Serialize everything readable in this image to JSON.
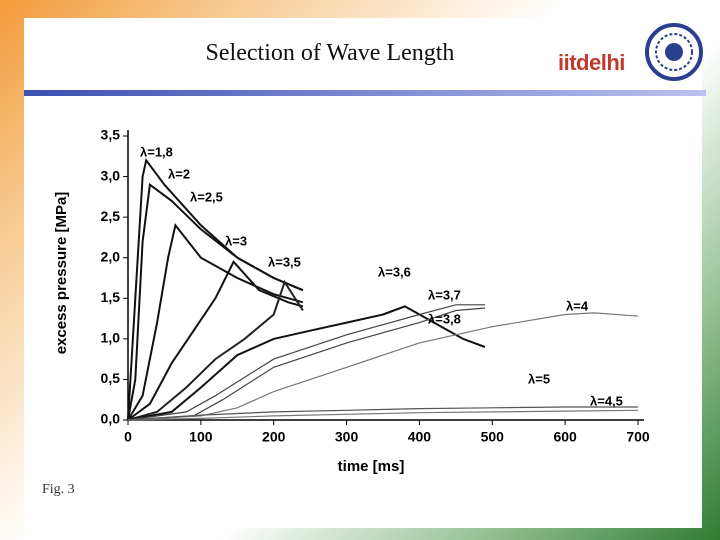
{
  "slide": {
    "title": "Selection of Wave Length",
    "logo_text": "iitdelhi",
    "caption": "Fig. 3"
  },
  "chart_data": {
    "type": "line",
    "x_label": "time [ms]",
    "y_label": "excess pressure [MPa]",
    "xlim": [
      0,
      700
    ],
    "xticks": [
      0,
      100,
      200,
      300,
      400,
      500,
      600,
      700
    ],
    "ylim": [
      0,
      3.5
    ],
    "yticks": [
      {
        "value": 0,
        "label": "0,0"
      },
      {
        "value": 0.5,
        "label": "0,5"
      },
      {
        "value": 1,
        "label": "1,0"
      },
      {
        "value": 1.5,
        "label": "1,5"
      },
      {
        "value": 2,
        "label": "2,0"
      },
      {
        "value": 2.5,
        "label": "2,5"
      },
      {
        "value": 3,
        "label": "3,0"
      },
      {
        "value": 3.5,
        "label": "3,5"
      }
    ],
    "series": [
      {
        "name": "λ=1,8",
        "color": "#111111",
        "x": [
          0,
          10,
          20,
          25,
          50,
          100,
          150,
          200,
          240
        ],
        "values": [
          0,
          1.5,
          3.0,
          3.2,
          2.9,
          2.4,
          2.0,
          1.75,
          1.6
        ]
      },
      {
        "name": "λ=2",
        "color": "#111111",
        "x": [
          0,
          10,
          20,
          30,
          60,
          100,
          150,
          200,
          240
        ],
        "values": [
          0,
          0.5,
          2.2,
          2.9,
          2.7,
          2.35,
          2.0,
          1.75,
          1.6
        ]
      },
      {
        "name": "λ=2,5",
        "color": "#111111",
        "x": [
          0,
          20,
          40,
          55,
          65,
          100,
          150,
          200,
          240
        ],
        "values": [
          0,
          0.3,
          1.2,
          2.0,
          2.4,
          2.0,
          1.75,
          1.55,
          1.45
        ]
      },
      {
        "name": "λ=3",
        "color": "#111111",
        "x": [
          0,
          30,
          60,
          90,
          120,
          145,
          180,
          220,
          240
        ],
        "values": [
          0,
          0.2,
          0.7,
          1.1,
          1.5,
          1.95,
          1.6,
          1.45,
          1.4
        ]
      },
      {
        "name": "λ=3,5",
        "color": "#222222",
        "x": [
          0,
          40,
          80,
          120,
          160,
          200,
          215,
          240
        ],
        "values": [
          0,
          0.1,
          0.4,
          0.75,
          1.0,
          1.3,
          1.7,
          1.35
        ]
      },
      {
        "name": "λ=3,6",
        "color": "#111111",
        "x": [
          0,
          60,
          100,
          150,
          200,
          250,
          300,
          350,
          380,
          420,
          460,
          490
        ],
        "values": [
          0,
          0.1,
          0.4,
          0.8,
          1.0,
          1.1,
          1.2,
          1.3,
          1.4,
          1.2,
          1.0,
          0.9
        ]
      },
      {
        "name": "λ=3,7",
        "color": "#444444",
        "x": [
          0,
          80,
          120,
          200,
          300,
          400,
          450,
          490
        ],
        "values": [
          0,
          0.1,
          0.3,
          0.75,
          1.05,
          1.3,
          1.42,
          1.42
        ]
      },
      {
        "name": "λ=3,8",
        "color": "#444444",
        "x": [
          0,
          90,
          130,
          200,
          300,
          400,
          450,
          490
        ],
        "values": [
          0,
          0.05,
          0.25,
          0.65,
          0.95,
          1.2,
          1.35,
          1.38
        ]
      },
      {
        "name": "λ=4",
        "color": "#777777",
        "x": [
          0,
          100,
          150,
          200,
          300,
          400,
          500,
          600,
          640,
          700
        ],
        "values": [
          0,
          0.05,
          0.15,
          0.35,
          0.65,
          0.95,
          1.15,
          1.3,
          1.32,
          1.28
        ]
      },
      {
        "name": "λ=5",
        "color": "#777777",
        "x": [
          0,
          100,
          200,
          300,
          400,
          500,
          600,
          700
        ],
        "values": [
          0,
          0.02,
          0.05,
          0.07,
          0.09,
          0.1,
          0.11,
          0.12
        ]
      },
      {
        "name": "λ=4,5",
        "color": "#555555",
        "x": [
          0,
          100,
          200,
          300,
          400,
          500,
          600,
          700
        ],
        "values": [
          0,
          0.06,
          0.1,
          0.12,
          0.14,
          0.15,
          0.16,
          0.16
        ]
      }
    ]
  }
}
